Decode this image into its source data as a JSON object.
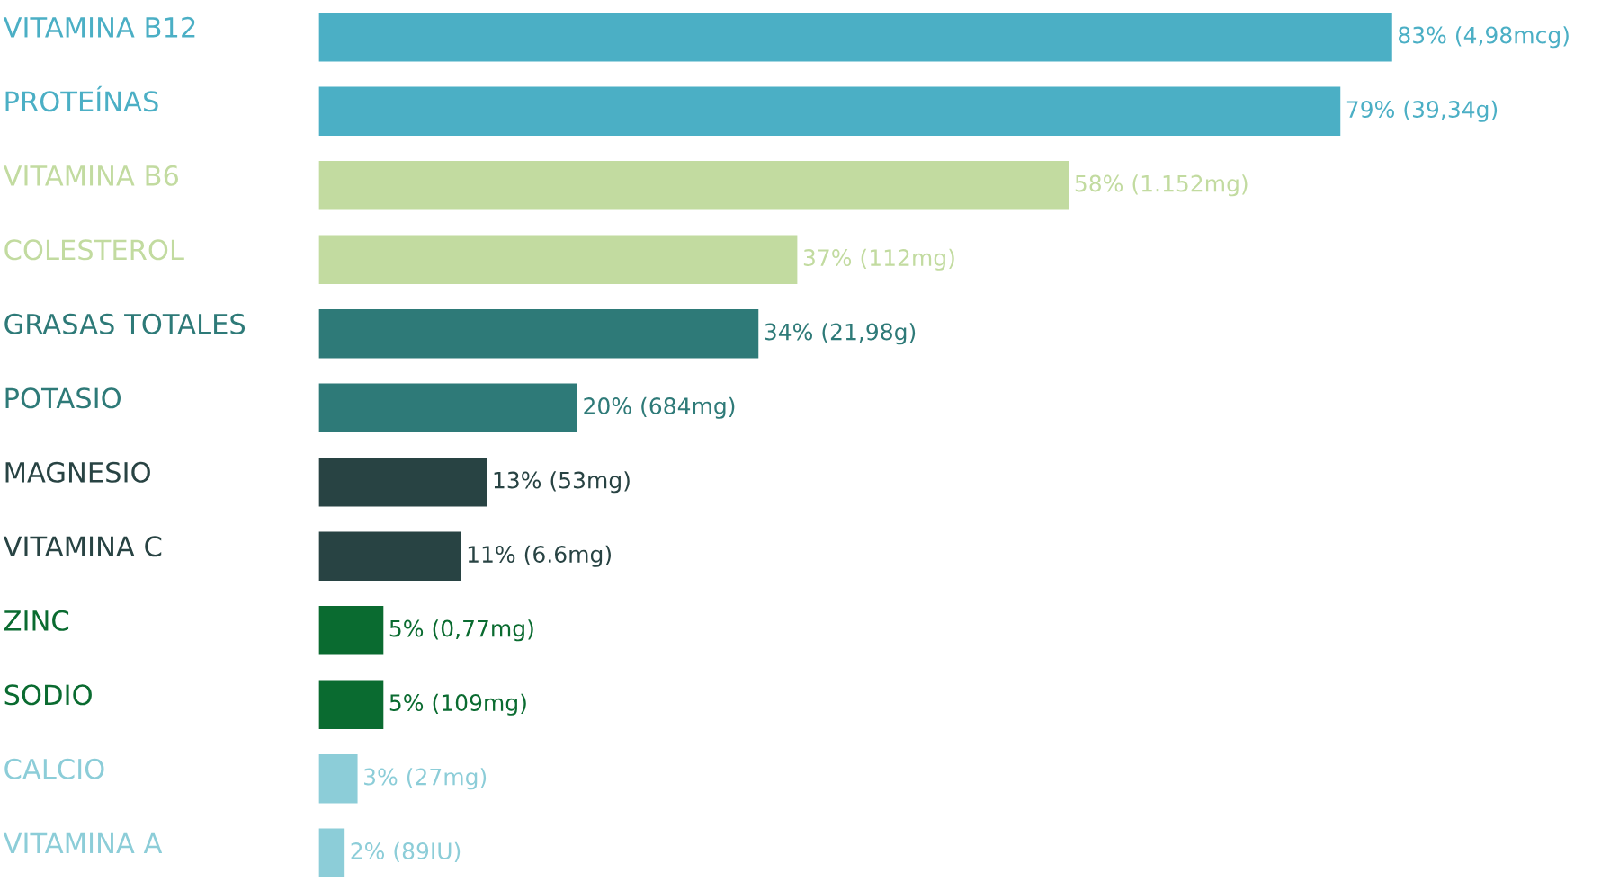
{
  "chart_data": {
    "type": "bar",
    "orientation": "horizontal",
    "categories": [
      "VITAMINA B12",
      "PROTEÍNAS",
      "VITAMINA B6",
      "COLESTEROL",
      "GRASAS TOTALES",
      "POTASIO",
      "MAGNESIO",
      "VITAMINA C",
      "ZINC",
      "SODIO",
      "CALCIO",
      "VITAMINA A"
    ],
    "values": [
      83,
      79,
      58,
      37,
      34,
      20,
      13,
      11,
      5,
      5,
      3,
      2
    ],
    "value_labels": [
      "83% (4,98mcg)",
      "79% (39,34g)",
      "58% (1.152mg)",
      "37% (112mg)",
      "34% (21,98g)",
      "20% (684mg)",
      "13% (53mg)",
      "11% (6.6mg)",
      "5% (0,77mg)",
      "5% (109mg)",
      "3% (27mg)",
      "2% (89IU)"
    ],
    "colors": [
      "#4bafc5",
      "#4bafc5",
      "#c2dba0",
      "#c2dba0",
      "#2e7a78",
      "#2e7a78",
      "#284343",
      "#284343",
      "#0a6b30",
      "#0a6b30",
      "#8ccdd8",
      "#8ccdd8"
    ],
    "legend": false
  }
}
